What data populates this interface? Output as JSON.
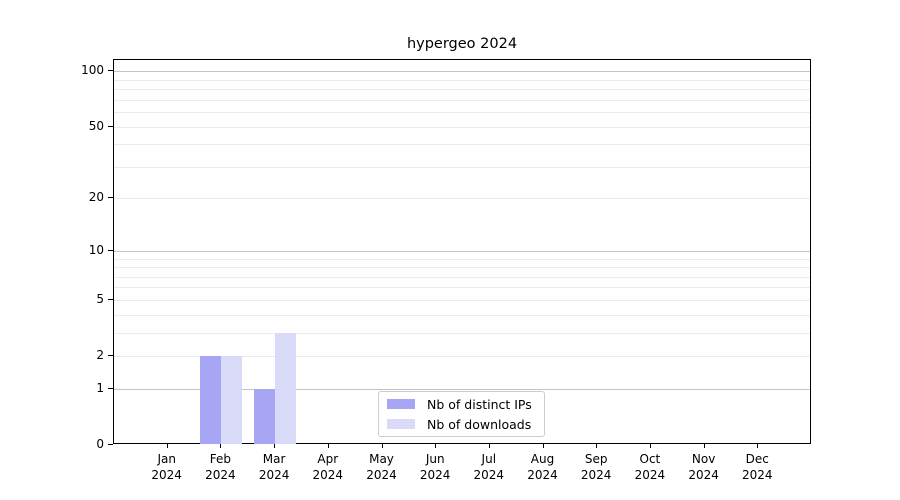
{
  "title": "hypergeo 2024",
  "chart_data": {
    "type": "bar",
    "title": "hypergeo 2024",
    "months": [
      "Jan",
      "Feb",
      "Mar",
      "Apr",
      "May",
      "Jun",
      "Jul",
      "Aug",
      "Sep",
      "Oct",
      "Nov",
      "Dec"
    ],
    "year": "2024",
    "categories": [
      "Jan 2024",
      "Feb 2024",
      "Mar 2024",
      "Apr 2024",
      "May 2024",
      "Jun 2024",
      "Jul 2024",
      "Aug 2024",
      "Sep 2024",
      "Oct 2024",
      "Nov 2024",
      "Dec 2024"
    ],
    "series": [
      {
        "name": "Nb of distinct IPs",
        "color": "#a6a6f4",
        "values": [
          0,
          2,
          1,
          0,
          0,
          0,
          0,
          0,
          0,
          0,
          0,
          0
        ]
      },
      {
        "name": "Nb of downloads",
        "color": "#d9d9f8",
        "values": [
          0,
          2,
          3,
          0,
          0,
          0,
          0,
          0,
          0,
          0,
          0,
          0
        ]
      }
    ],
    "yscale": "log1p",
    "ylim": [
      0,
      115
    ],
    "y_tick_values": [
      0,
      1,
      2,
      5,
      10,
      20,
      50,
      100
    ],
    "y_tick_labels": [
      "0",
      "1",
      "2",
      "5",
      "10",
      "20",
      "50",
      "100"
    ],
    "y_major_gridlines": [
      1,
      10,
      100
    ],
    "y_minor_gridlines": [
      2,
      3,
      4,
      5,
      6,
      7,
      8,
      9,
      20,
      30,
      40,
      50,
      60,
      70,
      80,
      90
    ],
    "grid": true,
    "legend_position": "bottom-center-inside",
    "xlabel": "",
    "ylabel": ""
  },
  "colors": {
    "background": "#ffffff",
    "axis": "#000000",
    "grid_major": "#c3c3c3",
    "grid_minor": "#ebebeb",
    "legend_border": "#cccccc",
    "bar_distinct_ips": "#a6a6f4",
    "bar_downloads": "#d9d9f8"
  }
}
